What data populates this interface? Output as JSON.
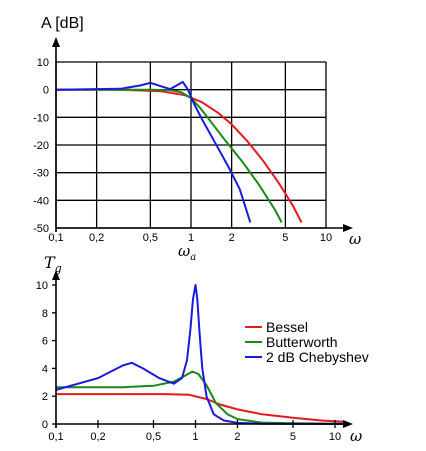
{
  "chart_data": [
    {
      "type": "line",
      "ylabel": "A [dB]",
      "xlabel": "ω",
      "sublabel": "ω_a",
      "x_scale": "log",
      "xlim": [
        0.1,
        10
      ],
      "ylim": [
        -50,
        10
      ],
      "x_ticks": [
        {
          "value": 0.1,
          "label": "0,1"
        },
        {
          "value": 0.2,
          "label": "0,2"
        },
        {
          "value": 0.5,
          "label": "0,5"
        },
        {
          "value": 1,
          "label": "1"
        },
        {
          "value": 2,
          "label": "2"
        },
        {
          "value": 5,
          "label": "5"
        },
        {
          "value": 10,
          "label": "10"
        }
      ],
      "y_ticks": [
        {
          "value": 10,
          "label": "10"
        },
        {
          "value": 0,
          "label": "0"
        },
        {
          "value": -10,
          "label": "-10"
        },
        {
          "value": -20,
          "label": "-20"
        },
        {
          "value": -30,
          "label": "-30"
        },
        {
          "value": -40,
          "label": "-40"
        },
        {
          "value": -50,
          "label": "-50"
        }
      ],
      "grid": true,
      "series": [
        {
          "key": "bessel",
          "color": "#e8191c",
          "x": [
            0.1,
            0.3,
            0.6,
            0.9,
            1.2,
            1.6,
            2.0,
            2.6,
            3.4,
            4.5,
            5.7,
            6.6
          ],
          "y": [
            0,
            0,
            -0.6,
            -2,
            -4.5,
            -8.5,
            -12.5,
            -18.5,
            -25.5,
            -34,
            -42,
            -48
          ]
        },
        {
          "key": "butterworth",
          "color": "#1a8a1a",
          "x": [
            0.1,
            0.5,
            0.7,
            0.85,
            1.0,
            1.15,
            1.4,
            1.8,
            2.4,
            3.2,
            4.2,
            4.7
          ],
          "y": [
            0,
            0,
            -0.2,
            -1,
            -3,
            -6.2,
            -11.5,
            -18.5,
            -26,
            -34.5,
            -43.5,
            -48
          ]
        },
        {
          "key": "chebyshev",
          "color": "#1a1ae0",
          "x": [
            0.1,
            0.3,
            0.42,
            0.5,
            0.6,
            0.7,
            0.8,
            0.87,
            0.95,
            1.05,
            1.2,
            1.5,
            1.9,
            2.3,
            2.75
          ],
          "y": [
            0,
            0.3,
            1.5,
            2.5,
            1.2,
            0.2,
            1.8,
            2.8,
            0,
            -5,
            -10.5,
            -19,
            -28,
            -36,
            -48
          ]
        }
      ]
    },
    {
      "type": "line",
      "ylabel": "T_g",
      "xlabel": "ω",
      "x_scale": "log",
      "xlim": [
        0.1,
        12
      ],
      "ylim": [
        0,
        10
      ],
      "x_ticks": [
        {
          "value": 0.1,
          "label": "0,1"
        },
        {
          "value": 0.2,
          "label": "0,2"
        },
        {
          "value": 0.5,
          "label": "0,5"
        },
        {
          "value": 1,
          "label": "1"
        },
        {
          "value": 2,
          "label": "2"
        },
        {
          "value": 5,
          "label": "5"
        },
        {
          "value": 10,
          "label": "10"
        }
      ],
      "y_ticks": [
        {
          "value": 0,
          "label": "0"
        },
        {
          "value": 2,
          "label": "2"
        },
        {
          "value": 4,
          "label": "4"
        },
        {
          "value": 6,
          "label": "6"
        },
        {
          "value": 8,
          "label": "8"
        },
        {
          "value": 10,
          "label": "10"
        }
      ],
      "grid": false,
      "legend_position": "right",
      "series": [
        {
          "key": "bessel",
          "name": "Bessel",
          "color": "#e8191c",
          "x": [
            0.1,
            0.3,
            0.6,
            0.9,
            1.2,
            1.5,
            2.0,
            3.0,
            5.0,
            8.0,
            12.0
          ],
          "y": [
            2.15,
            2.15,
            2.15,
            2.1,
            1.8,
            1.4,
            1.05,
            0.7,
            0.45,
            0.25,
            0.15
          ]
        },
        {
          "key": "butterworth",
          "name": "Butterworth",
          "color": "#1a8a1a",
          "x": [
            0.1,
            0.3,
            0.5,
            0.7,
            0.85,
            0.95,
            1.05,
            1.2,
            1.4,
            1.7,
            2.0,
            3.0,
            5.0,
            12.0
          ],
          "y": [
            2.65,
            2.65,
            2.75,
            3.05,
            3.5,
            3.78,
            3.6,
            2.8,
            1.5,
            0.7,
            0.35,
            0.1,
            0.05,
            0.02
          ]
        },
        {
          "key": "chebyshev",
          "name": "2 dB Chebyshev",
          "color": "#1a1ae0",
          "x": [
            0.1,
            0.2,
            0.3,
            0.35,
            0.42,
            0.55,
            0.7,
            0.8,
            0.87,
            0.92,
            0.96,
            1.0,
            1.03,
            1.07,
            1.12,
            1.2,
            1.35,
            1.6,
            2.0,
            3.0,
            12.0
          ],
          "y": [
            2.45,
            3.3,
            4.2,
            4.4,
            4.0,
            3.3,
            2.9,
            3.3,
            4.6,
            6.8,
            9.0,
            10.0,
            9.0,
            6.5,
            4.0,
            2.0,
            0.7,
            0.25,
            0.08,
            0.02,
            0.0
          ]
        }
      ]
    }
  ]
}
